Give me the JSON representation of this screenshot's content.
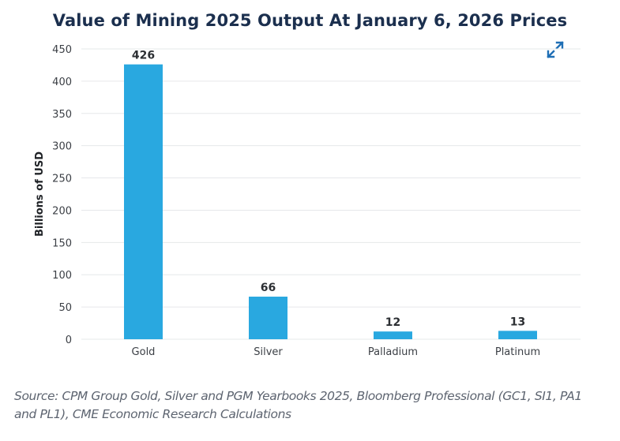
{
  "chart_data": {
    "type": "bar",
    "title": "Value of Mining 2025 Output At January 6, 2026 Prices",
    "xlabel": "",
    "ylabel": "Billions of USD",
    "categories": [
      "Gold",
      "Silver",
      "Palladium",
      "Platinum"
    ],
    "values": [
      426,
      66,
      12,
      13
    ],
    "data_labels": [
      "426",
      "66",
      "12",
      "13"
    ],
    "ylim": [
      0,
      450
    ],
    "yticks": [
      0,
      50,
      100,
      150,
      200,
      250,
      300,
      350,
      400,
      450
    ],
    "ytick_labels": [
      "0",
      "50",
      "100",
      "150",
      "200",
      "250",
      "300",
      "350",
      "400",
      "450"
    ],
    "grid": true,
    "legend": "none",
    "bar_color": "#29a8e0"
  },
  "source_note": "Source: CPM Group Gold, Silver and PGM Yearbooks 2025, Bloomberg Professional (GC1, SI1, PA1 and PL1), CME Economic Research Calculations",
  "controls": {
    "expand_icon": "expand-arrows-icon",
    "expand_color": "#1f6fb5"
  }
}
